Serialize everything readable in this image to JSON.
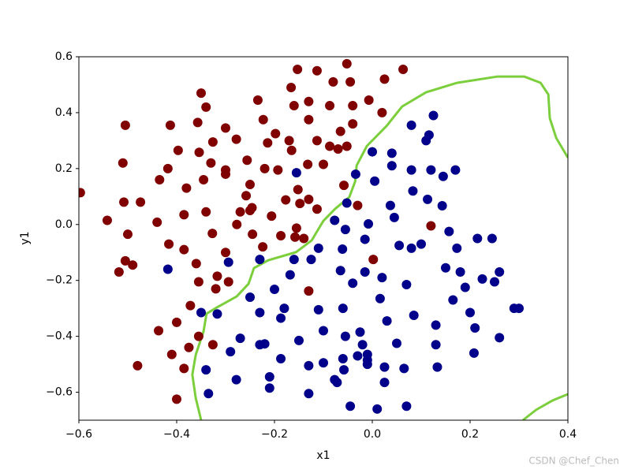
{
  "chart_data": {
    "type": "scatter",
    "xlabel": "x1",
    "ylabel": "y1",
    "xlim": [
      -0.6,
      0.4
    ],
    "ylim": [
      -0.7,
      0.6
    ],
    "xticks": [
      {
        "value": -0.6,
        "label": "−0.6"
      },
      {
        "value": -0.4,
        "label": "−0.4"
      },
      {
        "value": -0.2,
        "label": "−0.2"
      },
      {
        "value": 0,
        "label": "0.0"
      },
      0.2,
      0.4
    ],
    "yticks": [
      {
        "value": -0.6,
        "label": "−0.6"
      },
      {
        "value": -0.4,
        "label": "−0.4"
      },
      {
        "value": -0.2,
        "label": "−0.2"
      },
      {
        "value": 0,
        "label": "0.0"
      },
      0.2,
      0.4,
      0.6
    ],
    "series": [
      {
        "color": "#800000",
        "x": [
          -0.597,
          -0.505,
          -0.51,
          -0.474,
          -0.508,
          -0.542,
          -0.5,
          -0.505,
          -0.49,
          -0.518,
          -0.48,
          -0.413,
          -0.397,
          -0.418,
          -0.435,
          -0.38,
          -0.44,
          -0.385,
          -0.416,
          -0.385,
          -0.36,
          -0.355,
          -0.372,
          -0.4,
          -0.437,
          -0.355,
          -0.375,
          -0.41,
          -0.385,
          -0.4,
          -0.35,
          -0.34,
          -0.357,
          -0.326,
          -0.354,
          -0.33,
          -0.345,
          -0.34,
          -0.327,
          -0.317,
          -0.32,
          -0.326,
          -0.3,
          -0.278,
          -0.3,
          -0.3,
          -0.27,
          -0.277,
          -0.3,
          -0.294,
          -0.234,
          -0.256,
          -0.25,
          -0.258,
          -0.246,
          -0.25,
          -0.245,
          -0.224,
          -0.223,
          -0.198,
          -0.214,
          -0.22,
          -0.193,
          -0.206,
          -0.177,
          -0.187,
          -0.153,
          -0.166,
          -0.16,
          -0.17,
          -0.165,
          -0.152,
          -0.148,
          -0.155,
          -0.158,
          -0.14,
          -0.13,
          -0.13,
          -0.132,
          -0.13,
          -0.113,
          -0.113,
          -0.1,
          -0.113,
          -0.13,
          -0.08,
          -0.087,
          -0.087,
          -0.07,
          -0.045,
          -0.04,
          -0.065,
          -0.052,
          -0.052,
          -0.058,
          -0.04,
          -0.007,
          0.02,
          0.025,
          0.063,
          -0.03,
          0.002,
          0.12
        ],
        "values": [
          0.114,
          0.355,
          0.22,
          0.08,
          0.08,
          0.015,
          -0.035,
          -0.13,
          -0.145,
          -0.17,
          -0.505,
          0.355,
          0.265,
          0.2,
          0.16,
          0.13,
          0.008,
          0.035,
          -0.07,
          -0.09,
          -0.14,
          -0.205,
          -0.29,
          -0.35,
          -0.38,
          -0.4,
          -0.44,
          -0.465,
          -0.515,
          -0.625,
          0.47,
          0.42,
          0.365,
          0.295,
          0.258,
          0.22,
          0.16,
          0.045,
          -0.032,
          -0.185,
          -0.23,
          -0.43,
          0.345,
          0.305,
          0.195,
          0.18,
          0.045,
          0.0,
          -0.1,
          -0.205,
          0.445,
          0.23,
          0.143,
          0.103,
          0.06,
          0.05,
          -0.035,
          -0.08,
          0.375,
          0.325,
          0.292,
          0.2,
          0.195,
          0.03,
          0.088,
          -0.04,
          0.555,
          0.49,
          0.425,
          0.3,
          0.265,
          0.125,
          0.075,
          -0.013,
          -0.045,
          -0.05,
          0.44,
          0.375,
          0.215,
          0.09,
          0.55,
          0.3,
          0.215,
          0.055,
          -0.238,
          0.51,
          0.425,
          0.28,
          0.27,
          0.51,
          0.425,
          0.333,
          0.575,
          0.28,
          0.14,
          0.36,
          0.445,
          0.4,
          0.52,
          0.555,
          0.068,
          -0.125,
          -0.005
        ]
      },
      {
        "color": "#00008b",
        "x": [
          -0.155,
          0.0,
          0.04,
          0.04,
          -0.034,
          0.005,
          0.08,
          0.125,
          0.116,
          0.11,
          0.08,
          0.12,
          0.17,
          0.145,
          0.083,
          0.113,
          0.143,
          0.037,
          0.045,
          -0.052,
          -0.077,
          -0.008,
          -0.055,
          -0.015,
          -0.061,
          -0.11,
          -0.125,
          -0.16,
          0.055,
          0.08,
          0.1,
          0.157,
          0.173,
          0.15,
          0.18,
          0.215,
          0.245,
          0.225,
          0.25,
          0.26,
          0.19,
          0.165,
          0.2,
          0.29,
          0.3,
          0.13,
          0.21,
          0.26,
          0.13,
          0.208,
          0.133,
          -0.065,
          -0.04,
          -0.015,
          0.02,
          0.07,
          0.016,
          0.085,
          0.03,
          -0.11,
          -0.06,
          -0.1,
          -0.15,
          -0.025,
          -0.055,
          -0.02,
          0.05,
          -0.01,
          -0.03,
          -0.01,
          -0.06,
          -0.01,
          -0.1,
          -0.13,
          -0.058,
          0.025,
          0.065,
          0.025,
          -0.077,
          -0.072,
          -0.13,
          -0.045,
          0.01,
          0.07,
          -0.27,
          -0.29,
          -0.278,
          -0.34,
          -0.335,
          -0.317,
          -0.35,
          -0.418,
          -0.294,
          -0.23,
          -0.25,
          -0.23,
          -0.2,
          -0.18,
          -0.187,
          -0.168,
          -0.22,
          -0.23,
          -0.21,
          -0.187,
          -0.21
        ],
        "values": [
          0.185,
          0.26,
          0.255,
          0.21,
          0.18,
          0.155,
          0.355,
          0.39,
          0.32,
          0.3,
          0.195,
          0.195,
          0.195,
          0.172,
          0.12,
          0.09,
          0.067,
          0.068,
          0.025,
          0.077,
          0.015,
          0.002,
          -0.018,
          -0.053,
          -0.088,
          -0.085,
          -0.125,
          -0.125,
          -0.075,
          -0.085,
          -0.07,
          -0.025,
          -0.085,
          -0.155,
          -0.17,
          -0.05,
          -0.05,
          -0.195,
          -0.205,
          -0.17,
          -0.225,
          -0.27,
          -0.315,
          -0.3,
          -0.3,
          -0.36,
          -0.37,
          -0.405,
          -0.43,
          -0.46,
          -0.51,
          -0.165,
          -0.21,
          -0.17,
          -0.19,
          -0.215,
          -0.265,
          -0.325,
          -0.345,
          -0.305,
          -0.3,
          -0.38,
          -0.415,
          -0.385,
          -0.4,
          -0.43,
          -0.425,
          -0.465,
          -0.47,
          -0.485,
          -0.48,
          -0.5,
          -0.495,
          -0.505,
          -0.52,
          -0.51,
          -0.515,
          -0.565,
          -0.555,
          -0.565,
          -0.605,
          -0.65,
          -0.66,
          -0.65,
          -0.407,
          -0.455,
          -0.555,
          -0.52,
          -0.605,
          -0.32,
          -0.315,
          -0.16,
          -0.135,
          -0.125,
          -0.26,
          -0.315,
          -0.232,
          -0.3,
          -0.335,
          -0.18,
          -0.427,
          -0.43,
          -0.545,
          -0.48,
          -0.585
        ]
      },
      {
        "type": "line",
        "color": "#7ccf3c",
        "x": [
          -0.35,
          -0.361,
          -0.368,
          -0.361,
          -0.345,
          -0.339,
          -0.318,
          -0.277,
          -0.253,
          -0.242,
          -0.213,
          -0.156,
          -0.124,
          -0.1,
          -0.076,
          -0.047,
          -0.035,
          -0.032,
          -0.011,
          0.029,
          0.061,
          0.11,
          0.174,
          0.255,
          0.311,
          0.344,
          0.36,
          0.363,
          0.376,
          0.4,
          null,
          0.308,
          0.335,
          0.368,
          0.4
        ],
        "values": [
          -0.7,
          -0.621,
          -0.537,
          -0.466,
          -0.382,
          -0.319,
          -0.297,
          -0.257,
          -0.212,
          -0.156,
          -0.128,
          -0.099,
          -0.057,
          0.013,
          0.056,
          0.098,
          0.154,
          0.211,
          0.281,
          0.352,
          0.422,
          0.473,
          0.507,
          0.529,
          0.529,
          0.507,
          0.465,
          0.38,
          0.31,
          0.239,
          null,
          -0.7,
          -0.663,
          -0.63,
          -0.607
        ]
      }
    ]
  },
  "watermark": "CSDN @Chef_Chen"
}
